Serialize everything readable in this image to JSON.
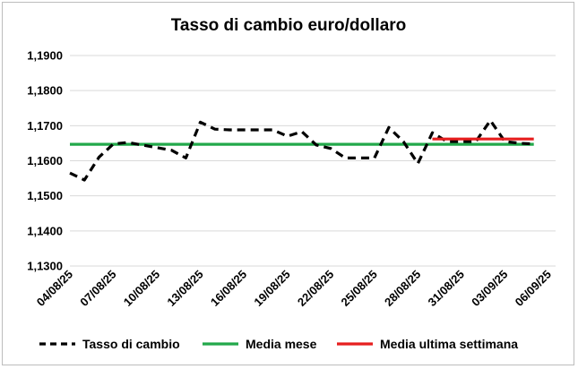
{
  "chart_data": {
    "type": "line",
    "title": "Tasso di cambio euro/dollaro",
    "xlabel": "",
    "ylabel": "",
    "x_ticks": [
      "04/08/25",
      "07/08/25",
      "10/08/25",
      "13/08/25",
      "16/08/25",
      "19/08/25",
      "22/08/25",
      "25/08/25",
      "28/08/25",
      "31/08/25",
      "03/09/25",
      "06/09/25"
    ],
    "xlim": [
      "04/08/25",
      "06/09/25"
    ],
    "y_ticks": [
      "1,1300",
      "1,1400",
      "1,1500",
      "1,1600",
      "1,1700",
      "1,1800",
      "1,1900"
    ],
    "ylim": [
      1.13,
      1.19
    ],
    "grid": "horizontal",
    "legend_position": "bottom",
    "series": [
      {
        "name": "Tasso di cambio",
        "color": "#000000",
        "style": "dashed",
        "points": [
          {
            "x": "04/08/25",
            "y": 1.1565
          },
          {
            "x": "05/08/25",
            "y": 1.1545
          },
          {
            "x": "06/08/25",
            "y": 1.161
          },
          {
            "x": "07/08/25",
            "y": 1.1648
          },
          {
            "x": "08/08/25",
            "y": 1.1652
          },
          {
            "x": "11/08/25",
            "y": 1.163
          },
          {
            "x": "12/08/25",
            "y": 1.1608
          },
          {
            "x": "13/08/25",
            "y": 1.171
          },
          {
            "x": "14/08/25",
            "y": 1.169
          },
          {
            "x": "15/08/25",
            "y": 1.1688
          },
          {
            "x": "18/08/25",
            "y": 1.1688
          },
          {
            "x": "19/08/25",
            "y": 1.167
          },
          {
            "x": "20/08/25",
            "y": 1.1683
          },
          {
            "x": "21/08/25",
            "y": 1.1645
          },
          {
            "x": "22/08/25",
            "y": 1.1635
          },
          {
            "x": "23/08/25",
            "y": 1.1608
          },
          {
            "x": "25/08/25",
            "y": 1.1608
          },
          {
            "x": "26/08/25",
            "y": 1.1695
          },
          {
            "x": "27/08/25",
            "y": 1.1655
          },
          {
            "x": "28/08/25",
            "y": 1.1592
          },
          {
            "x": "29/08/25",
            "y": 1.168
          },
          {
            "x": "30/08/25",
            "y": 1.1655
          },
          {
            "x": "01/09/25",
            "y": 1.1655
          },
          {
            "x": "02/09/25",
            "y": 1.1715
          },
          {
            "x": "03/09/25",
            "y": 1.1655
          },
          {
            "x": "04/09/25",
            "y": 1.165
          },
          {
            "x": "05/09/25",
            "y": 1.1648
          }
        ]
      },
      {
        "name": "Media mese",
        "color": "#22a84a",
        "style": "solid",
        "points": [
          {
            "x": "04/08/25",
            "y": 1.1647
          },
          {
            "x": "05/09/25",
            "y": 1.1647
          }
        ]
      },
      {
        "name": "Media ultima settimana",
        "color": "#e61e1e",
        "style": "solid",
        "points": [
          {
            "x": "29/08/25",
            "y": 1.1662
          },
          {
            "x": "05/09/25",
            "y": 1.1662
          }
        ]
      }
    ]
  }
}
